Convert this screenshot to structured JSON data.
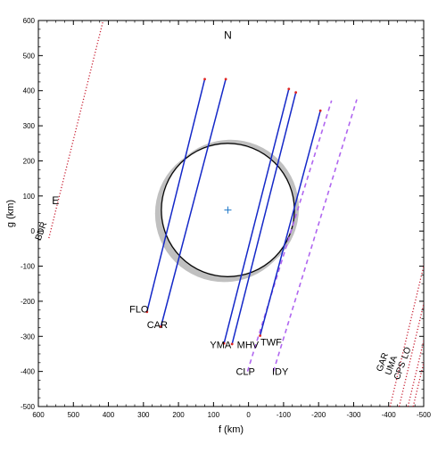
{
  "chart_data": {
    "type": "scatter",
    "title": "",
    "xlabel": "f (km)",
    "ylabel": "g (km)",
    "xlim": [
      600,
      -500
    ],
    "ylim": [
      -500,
      600
    ],
    "x_ticks": [
      600,
      500,
      400,
      300,
      200,
      100,
      0,
      -100,
      -200,
      -300,
      -400,
      -500
    ],
    "y_ticks": [
      600,
      500,
      400,
      300,
      200,
      100,
      0,
      -100,
      -200,
      -300,
      -400,
      -500
    ],
    "x_tick_labels": [
      "600",
      "500",
      "400",
      "300",
      "200",
      "100",
      "0",
      "-100",
      "-200",
      "-300",
      "-400",
      "-500"
    ],
    "y_tick_labels": [
      "600",
      "500",
      "400",
      "300",
      "200",
      "100",
      "0",
      "-100",
      "-200",
      "-300",
      "-400",
      "-500"
    ],
    "direction_labels": {
      "north": "N",
      "east": "E"
    },
    "ellipse": {
      "center": [
        59,
        60
      ],
      "radius": 380,
      "uncertainty_band": "gray"
    },
    "center_marker": {
      "f": 59,
      "g": 60,
      "symbol": "+"
    },
    "positive_chords": [
      {
        "name": "FLO",
        "from": [
          290,
          -230
        ],
        "to": [
          125,
          433
        ]
      },
      {
        "name": "CAR",
        "from": [
          250,
          -272
        ],
        "to": [
          65,
          433
        ]
      },
      {
        "name": "YMA",
        "from": [
          70,
          -320
        ],
        "to": [
          -115,
          405
        ]
      },
      {
        "name": "MHV",
        "from": [
          47,
          -322
        ],
        "to": [
          -135,
          395
        ]
      },
      {
        "name": "TWF",
        "from": [
          -33,
          -298
        ],
        "to": [
          -205,
          343
        ]
      }
    ],
    "negative_chords_dashed": [
      {
        "name": "CLP",
        "from": [
          3,
          -400
        ],
        "to": [
          -237,
          372
        ]
      },
      {
        "name": "IDY",
        "from": [
          -71,
          -400
        ],
        "to": [
          -309,
          375
        ]
      }
    ],
    "far_chords_dotted": [
      {
        "name": "BDR",
        "from": [
          570,
          -20
        ],
        "to": [
          415,
          600
        ]
      },
      {
        "name": "GAR",
        "from": [
          -404,
          -500
        ],
        "to": [
          -510,
          -58
        ]
      },
      {
        "name": "UMA",
        "from": [
          -430,
          -500
        ],
        "to": [
          -510,
          -166
        ]
      },
      {
        "name": "CPS",
        "from": [
          -455,
          -500
        ],
        "to": [
          -510,
          -271
        ]
      },
      {
        "name": "LO",
        "from": [
          -470,
          -500
        ],
        "to": [
          -510,
          -333
        ]
      }
    ],
    "site_labels": [
      {
        "text": "FLO",
        "f": 340,
        "g": -232
      },
      {
        "text": "CAR",
        "f": 290,
        "g": -277
      },
      {
        "text": "YMA",
        "f": 110,
        "g": -333
      },
      {
        "text": "MHV",
        "f": 33,
        "g": -333
      },
      {
        "text": "TWF",
        "f": -34,
        "g": -326
      },
      {
        "text": "CLP",
        "f": 36,
        "g": -410
      },
      {
        "text": "IDY",
        "f": -67,
        "g": -410
      }
    ],
    "rotated_labels": [
      {
        "text": "BDR",
        "f": 594,
        "g": -28
      },
      {
        "text": "GAR",
        "f": -380,
        "g": -402
      },
      {
        "text": "UMA",
        "f": -405,
        "g": -412
      },
      {
        "text": "CPS",
        "f": -430,
        "g": -425
      },
      {
        "text": "LO",
        "f": -452,
        "g": -366
      }
    ],
    "colors": {
      "positive_chord": "#1428c8",
      "negative_chord": "#b066f0",
      "far_chord": "#c81e32",
      "limb": "#000000",
      "band": "#c0c0c0",
      "center_marker": "#1e78c8",
      "chord_endpoints": "#dd2222"
    },
    "grid": false
  }
}
